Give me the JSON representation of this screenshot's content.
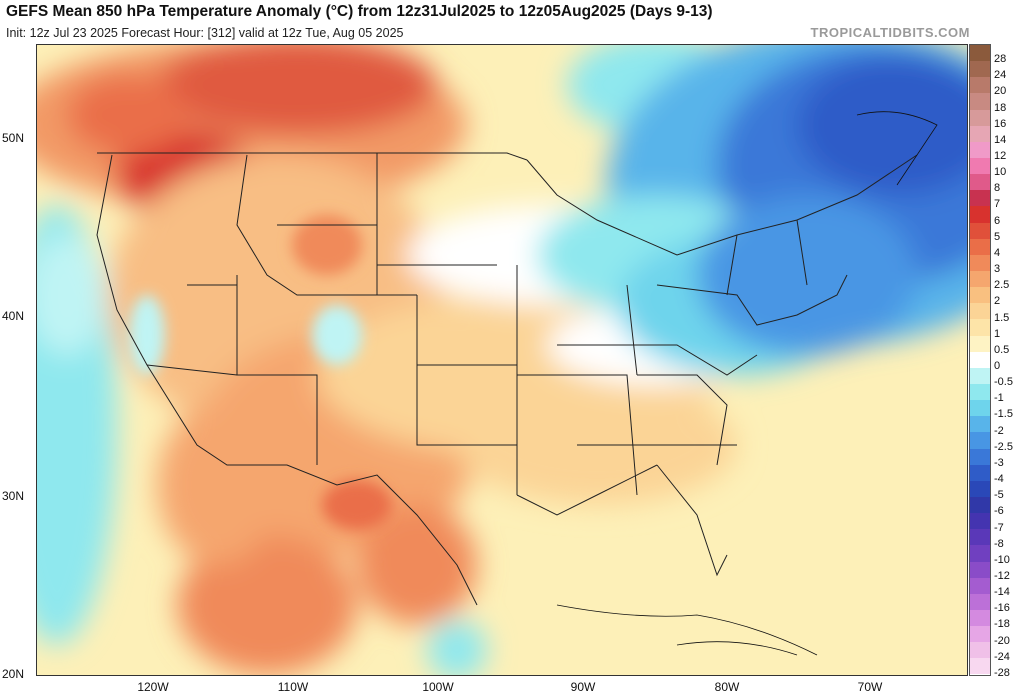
{
  "header": {
    "title": "GEFS Mean 850 hPa Temperature Anomaly (°C) from 12z31Jul2025 to 12z05Aug2025 (Days 9-13)",
    "subtitle": "Init: 12z Jul 23 2025   Forecast Hour: [312]   valid at 12z Tue, Aug 05 2025",
    "brand": "TROPICALTIDBITS.COM"
  },
  "axes": {
    "latitudes": [
      "50N",
      "40N",
      "30N",
      "20N"
    ],
    "longitudes": [
      "120W",
      "110W",
      "100W",
      "90W",
      "80W",
      "70W"
    ]
  },
  "colorbar": [
    {
      "label": "28",
      "color": "#8b5a3c"
    },
    {
      "label": "24",
      "color": "#a06850"
    },
    {
      "label": "20",
      "color": "#b87a6a"
    },
    {
      "label": "18",
      "color": "#c88a82"
    },
    {
      "label": "16",
      "color": "#d79a9a"
    },
    {
      "label": "14",
      "color": "#e6a6b4"
    },
    {
      "label": "12",
      "color": "#f09ac8"
    },
    {
      "label": "10",
      "color": "#f07ab0"
    },
    {
      "label": "8",
      "color": "#e05a8a"
    },
    {
      "label": "7",
      "color": "#c83250"
    },
    {
      "label": "6",
      "color": "#d8322e"
    },
    {
      "label": "5",
      "color": "#e0503a"
    },
    {
      "label": "4",
      "color": "#ea6e48"
    },
    {
      "label": "3",
      "color": "#f08a5a"
    },
    {
      "label": "2.5",
      "color": "#f5a66e"
    },
    {
      "label": "2",
      "color": "#f9c080"
    },
    {
      "label": "1.5",
      "color": "#fbd496"
    },
    {
      "label": "1",
      "color": "#fde4a8"
    },
    {
      "label": "0.5",
      "color": "#fef3c4"
    },
    {
      "label": "0",
      "color": "#ffffff"
    },
    {
      "label": "-0.5",
      "color": "#bff4f4"
    },
    {
      "label": "-1",
      "color": "#8fe8ee"
    },
    {
      "label": "-1.5",
      "color": "#6ed4ec"
    },
    {
      "label": "-2",
      "color": "#58b4ea"
    },
    {
      "label": "-2.5",
      "color": "#4896e4"
    },
    {
      "label": "-3",
      "color": "#3a78d8"
    },
    {
      "label": "-4",
      "color": "#2f5cc8"
    },
    {
      "label": "-5",
      "color": "#2a48b8"
    },
    {
      "label": "-6",
      "color": "#3038a8"
    },
    {
      "label": "-7",
      "color": "#4434b0"
    },
    {
      "label": "-8",
      "color": "#5a38b8"
    },
    {
      "label": "-10",
      "color": "#7040c0"
    },
    {
      "label": "-12",
      "color": "#8a4cc8"
    },
    {
      "label": "-14",
      "color": "#a45cd0"
    },
    {
      "label": "-16",
      "color": "#bc70d8"
    },
    {
      "label": "-18",
      "color": "#d48ae0"
    },
    {
      "label": "-20",
      "color": "#e6a6e6"
    },
    {
      "label": "-24",
      "color": "#f0c0e8"
    },
    {
      "label": "-28",
      "color": "#f8d8f0"
    }
  ]
}
